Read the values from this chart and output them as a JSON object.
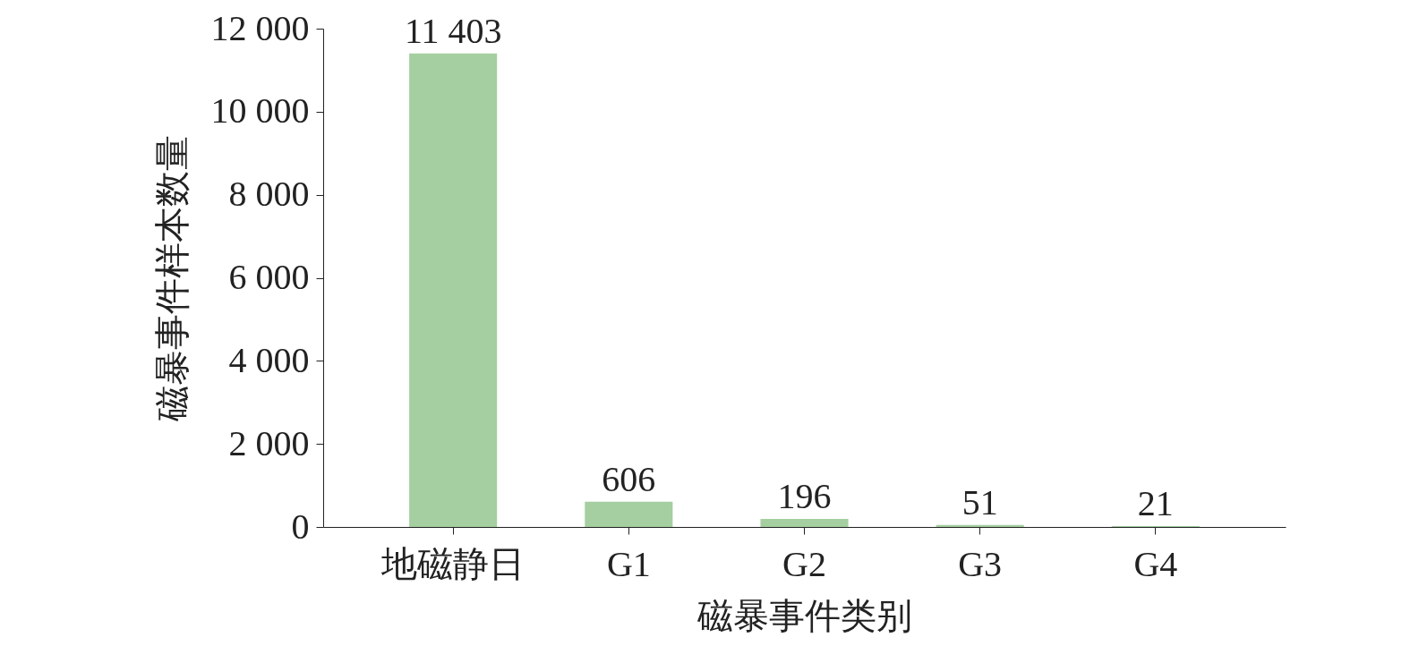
{
  "chart_data": {
    "type": "bar",
    "xlabel": "磁暴事件类别",
    "ylabel": "磁暴事件样本数量",
    "categories": [
      "地磁静日",
      "G1",
      "G2",
      "G3",
      "G4"
    ],
    "values": [
      11403,
      606,
      196,
      51,
      21
    ],
    "value_labels": [
      "11 403",
      "606",
      "196",
      "51",
      "21"
    ],
    "color": "#a5cfa0",
    "ylim": [
      0,
      12000
    ],
    "yticks": [
      {
        "value": 0,
        "label": "0"
      },
      {
        "value": 2000,
        "label": "2 000"
      },
      {
        "value": 4000,
        "label": "4 000"
      },
      {
        "value": 6000,
        "label": "6 000"
      },
      {
        "value": 8000,
        "label": "8 000"
      },
      {
        "value": 10000,
        "label": "10 000"
      },
      {
        "value": 12000,
        "label": "12 000"
      }
    ],
    "grid": false
  }
}
